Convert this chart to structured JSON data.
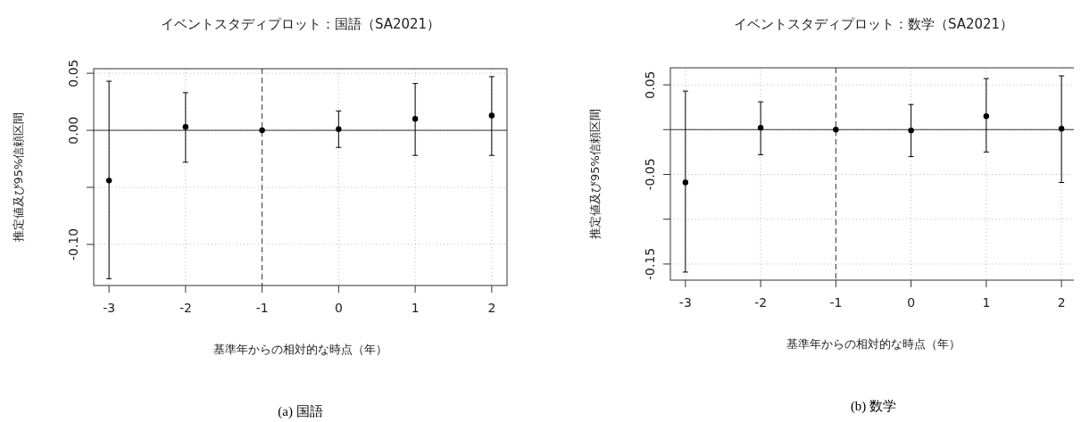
{
  "chart_data": [
    {
      "type": "scatter",
      "title": "イベントスタディプロット：国語（SA2021）",
      "xlabel": "基準年からの相対的な時点（年）",
      "ylabel": "推定値及び95%信頼区間",
      "annotations": [
        "(a) 国語"
      ],
      "x": [
        -3,
        -2,
        -1,
        0,
        1,
        2
      ],
      "values": [
        -0.044,
        0.003,
        0,
        0.001,
        0.01,
        0.013
      ],
      "errors": [
        [
          -0.13,
          0.043
        ],
        [
          -0.028,
          0.033
        ],
        null,
        [
          -0.015,
          0.017
        ],
        [
          -0.022,
          0.041
        ],
        [
          -0.022,
          0.047
        ]
      ],
      "color": "#000000",
      "marker": "circle",
      "xlim": [
        -3.2,
        2.2
      ],
      "xticks": [
        -3,
        -2,
        -1,
        0,
        1,
        2
      ],
      "ylim": [
        -0.136,
        0.054
      ],
      "yticks": [
        {
          "value": 0.05,
          "label": "0.05"
        },
        {
          "value": 0,
          "label": "0.00"
        },
        {
          "value": -0.05,
          "label": null
        },
        {
          "value": -0.1,
          "label": "-0.10"
        }
      ],
      "grid": true,
      "ref_lines": [
        {
          "axis": "x",
          "value": -1,
          "line_style": "dashed"
        },
        {
          "axis": "y",
          "value": 0,
          "line_style": "solid"
        }
      ]
    },
    {
      "type": "scatter",
      "title": "イベントスタディプロット：数学（SA2021）",
      "xlabel": "基準年からの相対的な時点（年）",
      "ylabel": "推定値及び95%信頼区間",
      "annotations": [
        "(b) 数学"
      ],
      "x": [
        -3,
        -2,
        -1,
        0,
        1,
        2
      ],
      "values": [
        -0.059,
        0.002,
        0,
        -0.001,
        0.015,
        0.001
      ],
      "errors": [
        [
          -0.159,
          0.043
        ],
        [
          -0.028,
          0.031
        ],
        null,
        [
          -0.03,
          0.028
        ],
        [
          -0.025,
          0.057
        ],
        [
          -0.059,
          0.06
        ]
      ],
      "color": "#000000",
      "marker": "circle",
      "xlim": [
        -3.2,
        2.2
      ],
      "xticks": [
        -3,
        -2,
        -1,
        0,
        1,
        2
      ],
      "ylim": [
        -0.168,
        0.069
      ],
      "yticks": [
        {
          "value": 0.05,
          "label": "0.05"
        },
        {
          "value": 0,
          "label": null
        },
        {
          "value": -0.05,
          "label": "-0.05"
        },
        {
          "value": -0.1,
          "label": null
        },
        {
          "value": -0.15,
          "label": "-0.15"
        }
      ],
      "grid": true,
      "ref_lines": [
        {
          "axis": "x",
          "value": -1,
          "line_style": "dashed"
        },
        {
          "axis": "y",
          "value": 0,
          "line_style": "solid"
        }
      ]
    }
  ]
}
